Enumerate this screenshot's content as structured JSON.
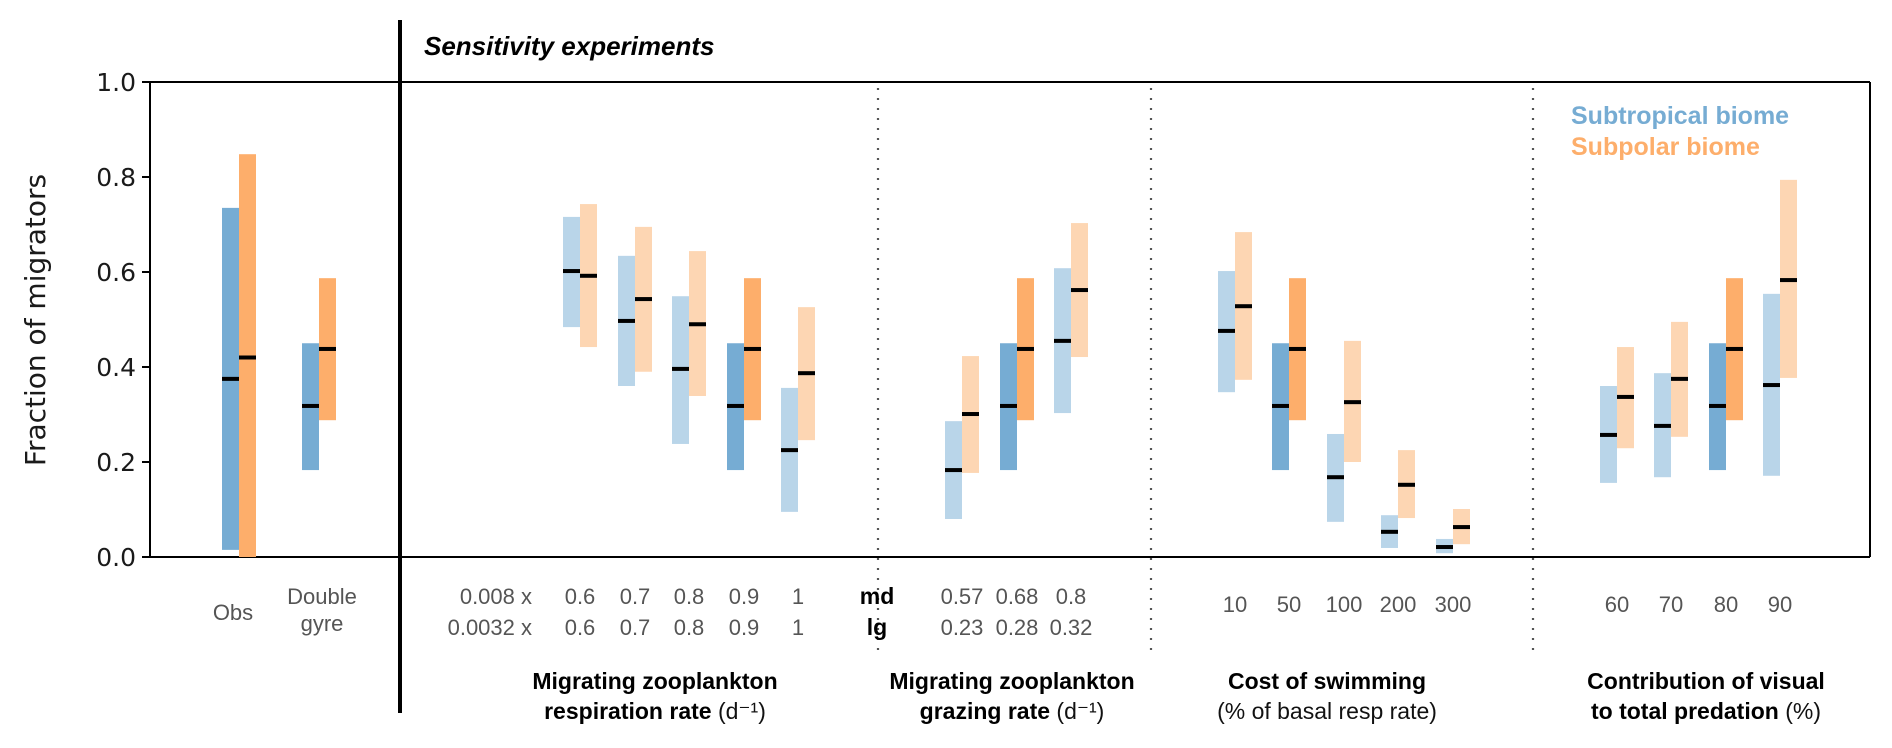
{
  "chart_data": {
    "type": "bar",
    "subtype": "floating-range-with-median",
    "title": "Sensitivity experiments",
    "ylabel": "Fraction of migrators",
    "ylim": [
      0.0,
      1.0
    ],
    "yticks": [
      "0.0",
      "0.2",
      "0.4",
      "0.6",
      "0.8",
      "1.0"
    ],
    "grid": false,
    "legend": {
      "placement": "top-right",
      "entries": [
        {
          "name": "Subtropical biome",
          "color": "#76acd3"
        },
        {
          "name": "Subpolar biome",
          "color": "#fdae6b"
        }
      ]
    },
    "colors": {
      "subtropical": "#76acd3",
      "subtropical_light": "#b9d5e9",
      "subpolar": "#fdae6b",
      "subpolar_light": "#fdd6b3",
      "median": "#000000"
    },
    "reference": {
      "categories": [
        {
          "label_lines": [
            "Obs"
          ],
          "subtropical": {
            "min": 0.015,
            "max": 0.735,
            "median": 0.375,
            "emphasis": true
          },
          "subpolar": {
            "min": 0.0,
            "max": 0.848,
            "median": 0.42,
            "emphasis": true
          }
        },
        {
          "label_lines": [
            "Double",
            "gyre"
          ],
          "subtropical": {
            "min": 0.183,
            "max": 0.45,
            "median": 0.318,
            "emphasis": true
          },
          "subpolar": {
            "min": 0.288,
            "max": 0.587,
            "median": 0.438,
            "emphasis": true
          }
        }
      ]
    },
    "groups": [
      {
        "title_lines": [
          "Migrating zooplankton",
          "respiration rate"
        ],
        "unit": "(d⁻¹)",
        "prefix": [
          "0.008 x",
          "0.0032 x"
        ],
        "categories": [
          {
            "labels": [
              "0.6",
              "0.6"
            ],
            "subtropical": {
              "min": 0.484,
              "max": 0.716,
              "median": 0.602,
              "emphasis": false
            },
            "subpolar": {
              "min": 0.442,
              "max": 0.743,
              "median": 0.592,
              "emphasis": false
            }
          },
          {
            "labels": [
              "0.7",
              "0.7"
            ],
            "subtropical": {
              "min": 0.36,
              "max": 0.634,
              "median": 0.497,
              "emphasis": false
            },
            "subpolar": {
              "min": 0.39,
              "max": 0.695,
              "median": 0.543,
              "emphasis": false
            }
          },
          {
            "labels": [
              "0.8",
              "0.8"
            ],
            "subtropical": {
              "min": 0.238,
              "max": 0.549,
              "median": 0.396,
              "emphasis": false
            },
            "subpolar": {
              "min": 0.339,
              "max": 0.644,
              "median": 0.49,
              "emphasis": false
            }
          },
          {
            "labels": [
              "0.9",
              "0.9"
            ],
            "subtropical": {
              "min": 0.183,
              "max": 0.45,
              "median": 0.318,
              "emphasis": true
            },
            "subpolar": {
              "min": 0.288,
              "max": 0.587,
              "median": 0.438,
              "emphasis": true
            }
          },
          {
            "labels": [
              "1",
              "1"
            ],
            "subtropical": {
              "min": 0.095,
              "max": 0.356,
              "median": 0.225,
              "emphasis": false
            },
            "subpolar": {
              "min": 0.246,
              "max": 0.526,
              "median": 0.387,
              "emphasis": false
            }
          }
        ]
      },
      {
        "title_lines": [
          "Migrating zooplankton",
          "grazing rate"
        ],
        "unit": "(d⁻¹)",
        "size_labels": [
          "md",
          "lg"
        ],
        "categories": [
          {
            "labels": [
              "0.57",
              "0.23"
            ],
            "subtropical": {
              "min": 0.08,
              "max": 0.286,
              "median": 0.183,
              "emphasis": false
            },
            "subpolar": {
              "min": 0.177,
              "max": 0.423,
              "median": 0.301,
              "emphasis": false
            }
          },
          {
            "labels": [
              "0.68",
              "0.28"
            ],
            "subtropical": {
              "min": 0.183,
              "max": 0.45,
              "median": 0.318,
              "emphasis": true
            },
            "subpolar": {
              "min": 0.288,
              "max": 0.587,
              "median": 0.438,
              "emphasis": true
            }
          },
          {
            "labels": [
              "0.8",
              "0.32"
            ],
            "subtropical": {
              "min": 0.303,
              "max": 0.608,
              "median": 0.455,
              "emphasis": false
            },
            "subpolar": {
              "min": 0.421,
              "max": 0.703,
              "median": 0.562,
              "emphasis": false
            }
          }
        ]
      },
      {
        "title_lines": [
          "Cost of swimming"
        ],
        "unit": "(% of basal resp rate)",
        "categories": [
          {
            "labels": [
              "10"
            ],
            "subtropical": {
              "min": 0.347,
              "max": 0.602,
              "median": 0.476,
              "emphasis": false
            },
            "subpolar": {
              "min": 0.373,
              "max": 0.684,
              "median": 0.528,
              "emphasis": false
            }
          },
          {
            "labels": [
              "50"
            ],
            "subtropical": {
              "min": 0.183,
              "max": 0.45,
              "median": 0.318,
              "emphasis": true
            },
            "subpolar": {
              "min": 0.288,
              "max": 0.587,
              "median": 0.438,
              "emphasis": true
            }
          },
          {
            "labels": [
              "100"
            ],
            "subtropical": {
              "min": 0.074,
              "max": 0.259,
              "median": 0.168,
              "emphasis": false
            },
            "subpolar": {
              "min": 0.2,
              "max": 0.455,
              "median": 0.326,
              "emphasis": false
            }
          },
          {
            "labels": [
              "200"
            ],
            "subtropical": {
              "min": 0.019,
              "max": 0.088,
              "median": 0.053,
              "emphasis": false
            },
            "subpolar": {
              "min": 0.082,
              "max": 0.225,
              "median": 0.152,
              "emphasis": false
            }
          },
          {
            "labels": [
              "300"
            ],
            "subtropical": {
              "min": 0.008,
              "max": 0.038,
              "median": 0.021,
              "emphasis": false
            },
            "subpolar": {
              "min": 0.027,
              "max": 0.101,
              "median": 0.063,
              "emphasis": false
            }
          }
        ]
      },
      {
        "title_lines": [
          "Contribution of visual",
          "to total predation"
        ],
        "unit": "(%)",
        "categories": [
          {
            "labels": [
              "60"
            ],
            "subtropical": {
              "min": 0.156,
              "max": 0.36,
              "median": 0.257,
              "emphasis": false
            },
            "subpolar": {
              "min": 0.229,
              "max": 0.442,
              "median": 0.337,
              "emphasis": false
            }
          },
          {
            "labels": [
              "70"
            ],
            "subtropical": {
              "min": 0.168,
              "max": 0.387,
              "median": 0.276,
              "emphasis": false
            },
            "subpolar": {
              "min": 0.253,
              "max": 0.495,
              "median": 0.375,
              "emphasis": false
            }
          },
          {
            "labels": [
              "80"
            ],
            "subtropical": {
              "min": 0.183,
              "max": 0.45,
              "median": 0.318,
              "emphasis": true
            },
            "subpolar": {
              "min": 0.288,
              "max": 0.587,
              "median": 0.438,
              "emphasis": true
            }
          },
          {
            "labels": [
              "90"
            ],
            "subtropical": {
              "min": 0.171,
              "max": 0.554,
              "median": 0.362,
              "emphasis": false
            },
            "subpolar": {
              "min": 0.377,
              "max": 0.794,
              "median": 0.583,
              "emphasis": false
            }
          }
        ]
      }
    ]
  }
}
